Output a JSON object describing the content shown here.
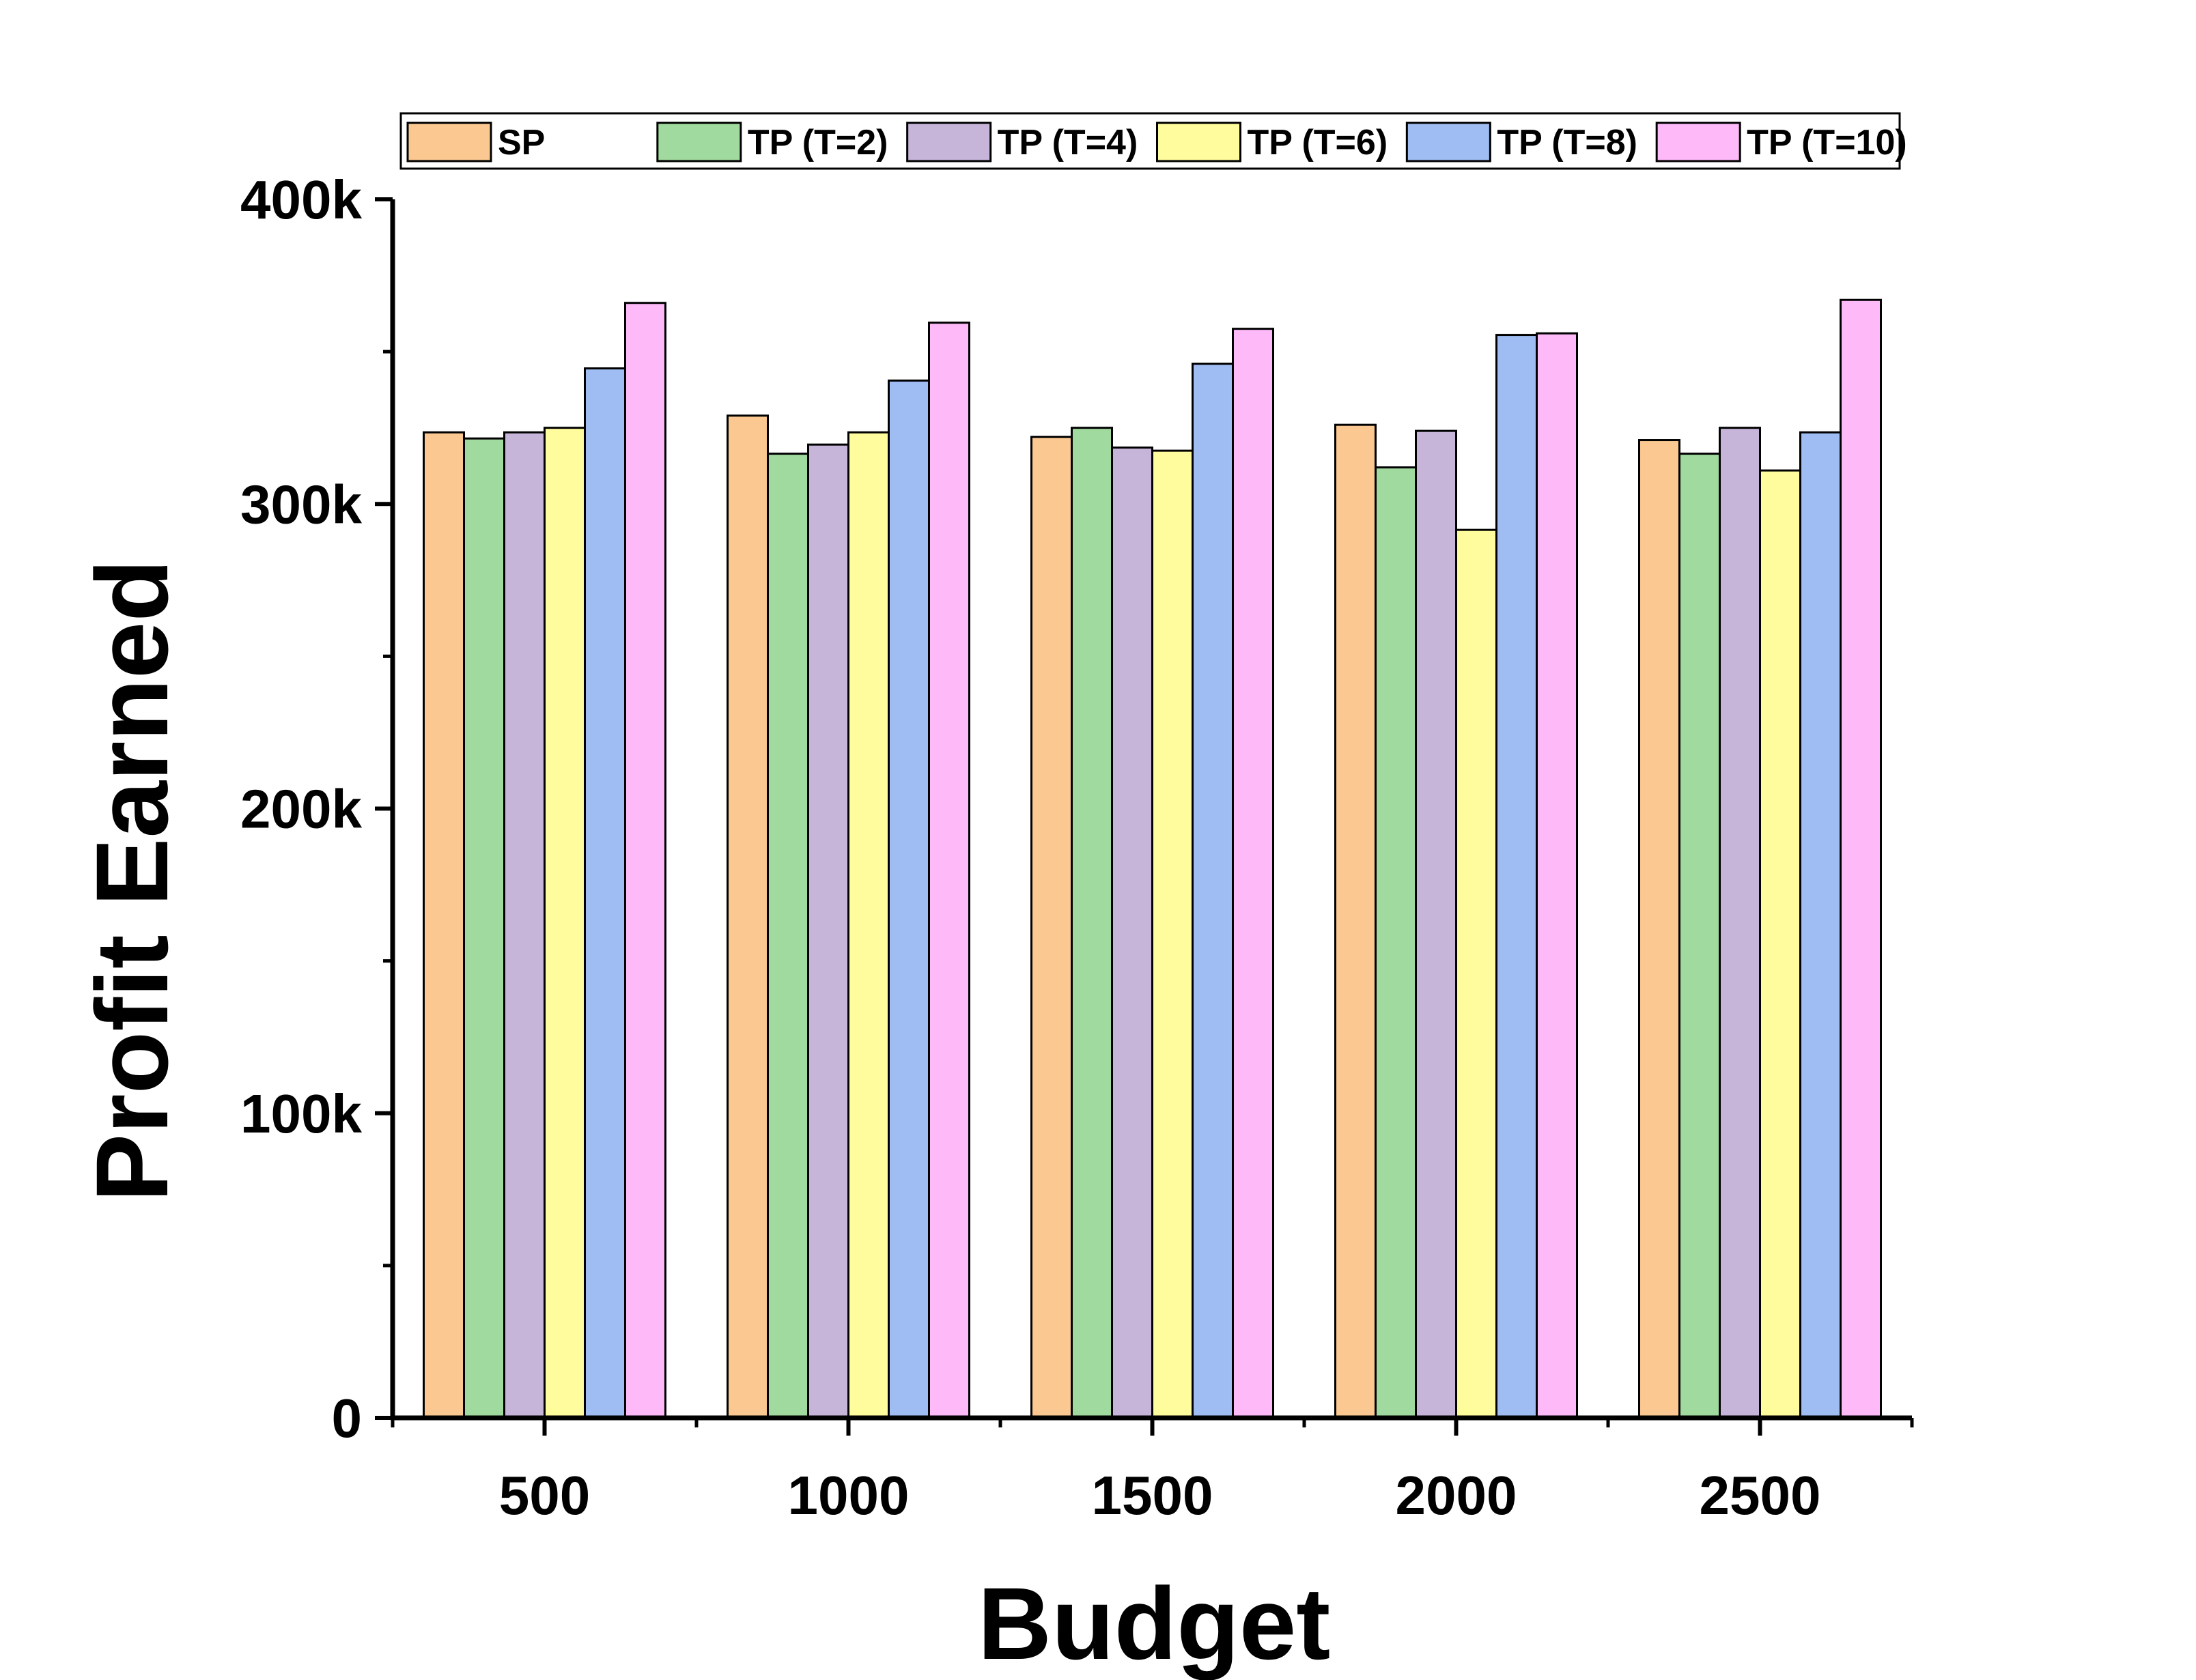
{
  "chart_data": {
    "type": "bar",
    "title": "",
    "xlabel": "Budget",
    "ylabel": "Profit Earned",
    "categories": [
      "500",
      "1000",
      "1500",
      "2000",
      "2500"
    ],
    "series": [
      {
        "name": "SP",
        "color": "#FAC890",
        "values": [
          323500,
          329000,
          322000,
          326000,
          321000
        ]
      },
      {
        "name": "TP (T=2)",
        "color": "#A0DA9E",
        "values": [
          321500,
          316500,
          325000,
          312000,
          316500
        ]
      },
      {
        "name": "TP (T=4)",
        "color": "#C6B5D9",
        "values": [
          323500,
          319500,
          318500,
          324000,
          325000
        ]
      },
      {
        "name": "TP (T=6)",
        "color": "#FFFC9E",
        "values": [
          325000,
          323500,
          317500,
          291500,
          311000
        ]
      },
      {
        "name": "TP (T=8)",
        "color": "#9FBDF2",
        "values": [
          344500,
          340500,
          346000,
          355500,
          323500
        ]
      },
      {
        "name": "TP (T=10)",
        "color": "#FEB9F8",
        "values": [
          366000,
          359500,
          357500,
          356000,
          367000
        ]
      }
    ],
    "ylim": [
      0,
      400000
    ],
    "yticks": [
      0,
      100000,
      200000,
      300000,
      400000
    ],
    "ytick_labels": [
      "0",
      "100k",
      "200k",
      "300k",
      "400k"
    ],
    "grid": false,
    "legend_position": "top"
  }
}
